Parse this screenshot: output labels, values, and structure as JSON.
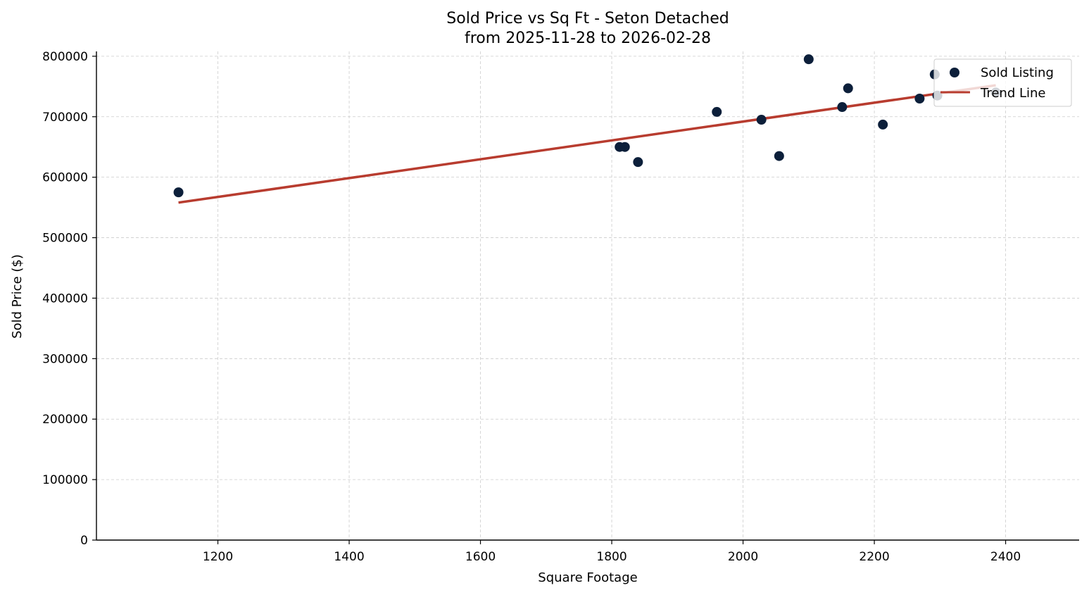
{
  "chart_data": {
    "type": "scatter",
    "title_line1": "Sold Price vs Sq Ft - Seton Detached",
    "title_line2": "from 2025-11-28 to 2026-02-28",
    "xlabel": "Square Footage",
    "ylabel": "Sold Price ($)",
    "xlim": [
      1015,
      2512
    ],
    "ylim": [
      0,
      808000
    ],
    "x_ticks": [
      1200,
      1400,
      1600,
      1800,
      2000,
      2200,
      2400
    ],
    "y_ticks": [
      0,
      100000,
      200000,
      300000,
      400000,
      500000,
      600000,
      700000,
      800000
    ],
    "grid": true,
    "legend_placement": "top-right",
    "colors": {
      "points": "#0c1f3a",
      "trend": "#b83c2f",
      "grid": "#cccccc"
    },
    "series": [
      {
        "name": "Sold Listing",
        "kind": "scatter",
        "x": [
          1140,
          1812,
          1820,
          1840,
          1960,
          2028,
          2055,
          2100,
          2151,
          2160,
          2213,
          2269,
          2292,
          2296,
          2385
        ],
        "y": [
          575000,
          650000,
          650000,
          625000,
          708000,
          695000,
          635000,
          795000,
          716000,
          747000,
          687000,
          730000,
          770000,
          735000,
          740000
        ]
      },
      {
        "name": "Trend Line",
        "kind": "line",
        "x": [
          1140,
          2385
        ],
        "y": [
          558000,
          752000
        ]
      }
    ]
  }
}
